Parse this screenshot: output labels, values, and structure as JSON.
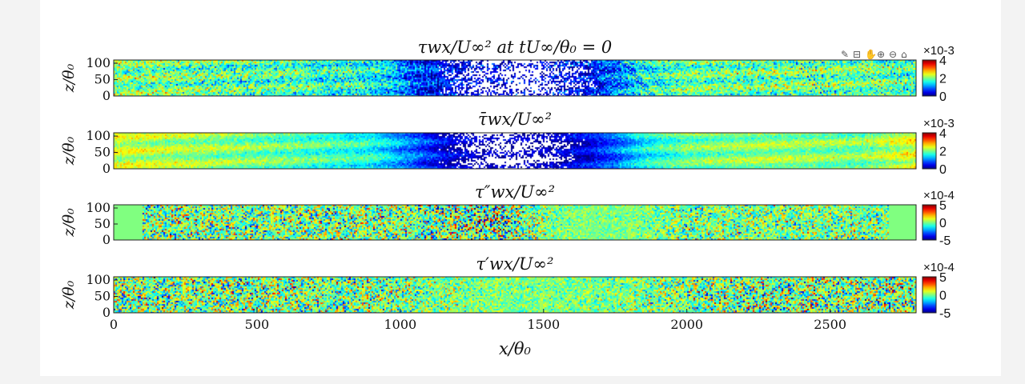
{
  "toolbar": {
    "icons": [
      "brush-icon",
      "datatip-icon",
      "pan-icon",
      "zoom-in-icon",
      "zoom-out-icon",
      "home-icon"
    ],
    "glyphs": [
      "✎",
      "⊟",
      "✋",
      "⊕",
      "⊖",
      "⌂"
    ]
  },
  "x_axis": {
    "label": "x/θ₀",
    "ticks": [
      "0",
      "500",
      "1000",
      "1500",
      "2000",
      "2500"
    ],
    "tick_values": [
      0,
      500,
      1000,
      1500,
      2000,
      2500
    ],
    "range": [
      0,
      2800
    ]
  },
  "colormap": "jet",
  "chart_data": [
    {
      "type": "heatmap",
      "title": "τwx/U∞² at tU∞/θ₀ = 0",
      "ylabel": "z/θ₀",
      "yticks": [
        "100",
        "50",
        "0"
      ],
      "ytick_values": [
        100,
        50,
        0
      ],
      "ylim": [
        0,
        110
      ],
      "xlim": [
        0,
        2800
      ],
      "colorbar": {
        "ticks": [
          "4",
          "2",
          "0"
        ],
        "values": [
          4,
          2,
          0
        ],
        "range": [
          0,
          4
        ],
        "exponent": "×10-3"
      },
      "field": "instantaneous",
      "profile_x": [
        0,
        300,
        600,
        900,
        1050,
        1150,
        1300,
        1450,
        1550,
        1650,
        1750,
        1850,
        2000,
        2300,
        2600,
        2800
      ],
      "profile_v": [
        2.0,
        1.9,
        1.8,
        1.6,
        0.9,
        0.4,
        0.1,
        0.1,
        0.2,
        0.4,
        0.9,
        1.5,
        1.9,
        2.0,
        1.9,
        1.8
      ],
      "noise": 0.8,
      "separation_x": [
        1170,
        1650
      ]
    },
    {
      "type": "heatmap",
      "title": "τ̄wx/U∞²",
      "ylabel": "z/θ₀",
      "yticks": [
        "100",
        "50",
        "0"
      ],
      "ytick_values": [
        100,
        50,
        0
      ],
      "ylim": [
        0,
        110
      ],
      "xlim": [
        0,
        2800
      ],
      "colorbar": {
        "ticks": [
          "4",
          "2",
          "0"
        ],
        "values": [
          4,
          2,
          0
        ],
        "range": [
          0,
          4
        ],
        "exponent": "×10-3"
      },
      "field": "mean",
      "profile_x": [
        0,
        300,
        600,
        900,
        1050,
        1150,
        1300,
        1450,
        1550,
        1650,
        1750,
        1850,
        2000,
        2300,
        2600,
        2800
      ],
      "profile_v": [
        2.3,
        2.1,
        1.9,
        1.6,
        0.9,
        0.4,
        0.1,
        0.1,
        0.2,
        0.4,
        0.9,
        1.5,
        1.9,
        2.1,
        2.0,
        2.4
      ],
      "noise": 0.35,
      "separation_x": [
        1170,
        1600
      ]
    },
    {
      "type": "heatmap",
      "title": "τ″wx/U∞²",
      "ylabel": "z/θ₀",
      "yticks": [
        "100",
        "50",
        "0"
      ],
      "ytick_values": [
        100,
        50,
        0
      ],
      "ylim": [
        0,
        110
      ],
      "xlim": [
        0,
        2800
      ],
      "colorbar": {
        "ticks": [
          "5",
          "0",
          "-5"
        ],
        "values": [
          5,
          0,
          -5
        ],
        "range": [
          -5,
          5
        ],
        "exponent": "×10-4"
      },
      "field": "fluctuation-double-prime",
      "active_x": [
        100,
        2700
      ],
      "profile_x": [
        0,
        1000,
        1200,
        1400,
        1600,
        1800,
        2000,
        2800
      ],
      "profile_v": [
        0,
        0,
        0,
        0,
        0,
        0,
        0,
        0
      ],
      "noise_x": [
        0,
        1000,
        1200,
        1350,
        1500,
        1650,
        1800,
        2000,
        2800
      ],
      "noise_v": [
        3.2,
        3.2,
        4.0,
        4.5,
        2.0,
        1.0,
        1.2,
        2.6,
        2.6
      ]
    },
    {
      "type": "heatmap",
      "title": "τ′wx/U∞²",
      "ylabel": "z/θ₀",
      "yticks": [
        "100",
        "50",
        "0"
      ],
      "ytick_values": [
        100,
        50,
        0
      ],
      "ylim": [
        0,
        110
      ],
      "xlim": [
        0,
        2800
      ],
      "colorbar": {
        "ticks": [
          "5",
          "0",
          "-5"
        ],
        "values": [
          5,
          0,
          -5
        ],
        "range": [
          -5,
          5
        ],
        "exponent": "×10-4"
      },
      "field": "fluctuation-prime",
      "profile_x": [
        0,
        2800
      ],
      "profile_v": [
        0,
        0
      ],
      "noise_x": [
        0,
        900,
        1100,
        1300,
        1500,
        1700,
        1900,
        2100,
        2800
      ],
      "noise_v": [
        3.5,
        3.2,
        2.2,
        1.6,
        1.4,
        1.6,
        2.6,
        3.4,
        3.6
      ]
    }
  ]
}
